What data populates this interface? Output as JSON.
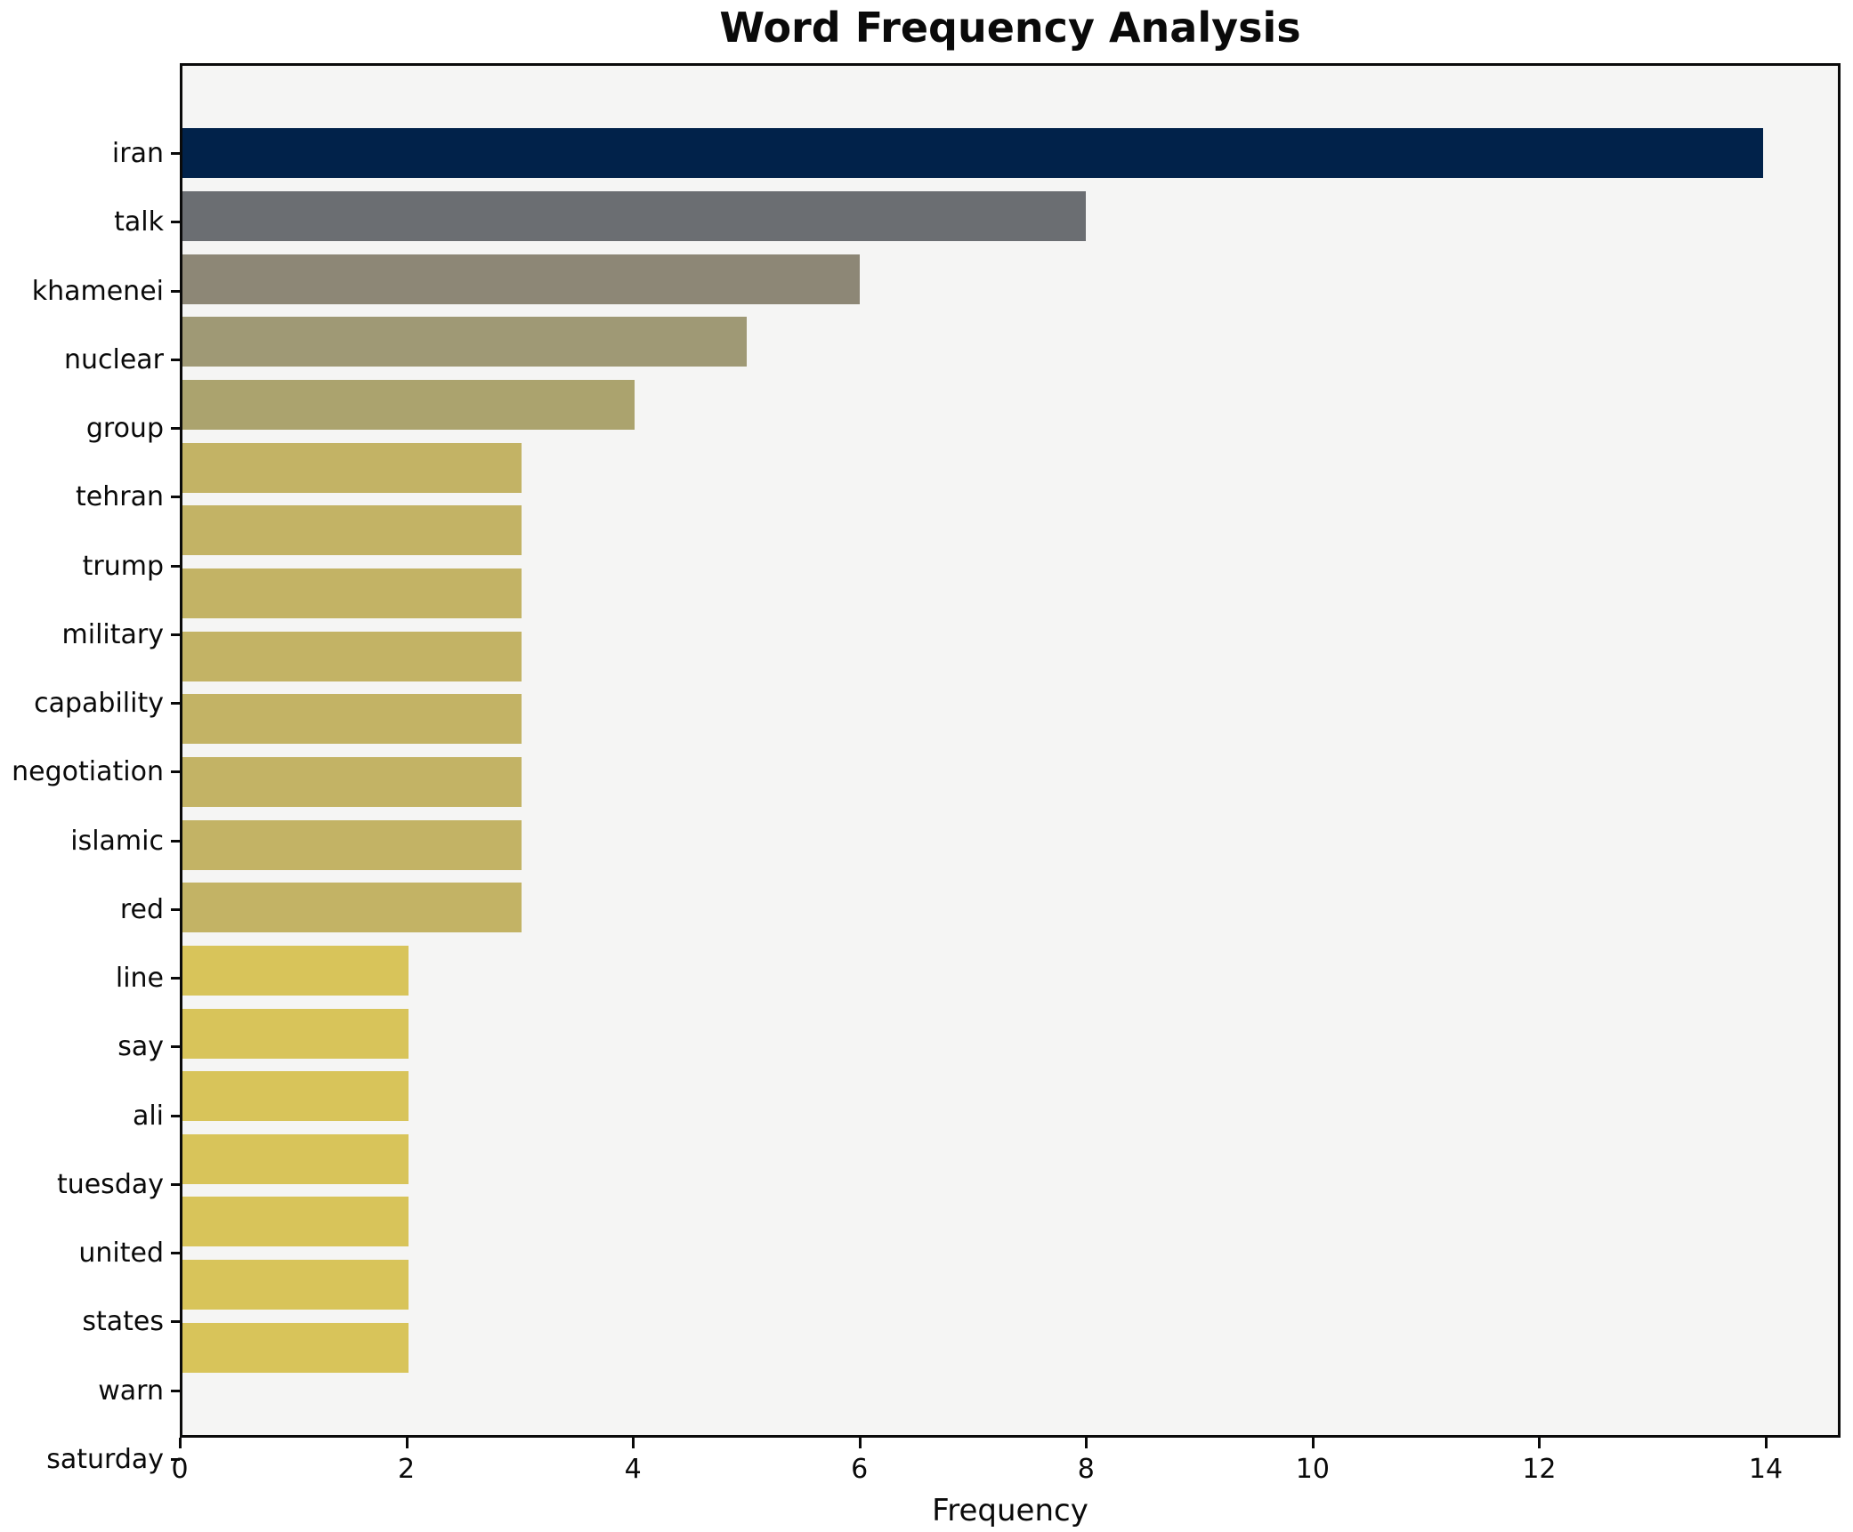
{
  "title": "Word Frequency Analysis",
  "xlabel": "Frequency",
  "chart_data": {
    "type": "bar",
    "orientation": "horizontal",
    "title": "Word Frequency Analysis",
    "xlabel": "Frequency",
    "ylabel": "",
    "xlim": [
      0,
      14.66
    ],
    "xticks": [
      0,
      2,
      4,
      6,
      8,
      10,
      12,
      14
    ],
    "grid": false,
    "legend": "none",
    "plot_background": "#f5f5f4",
    "figure_background": "#ffffff",
    "axis_color": "#0a0a0a",
    "categories": [
      "iran",
      "talk",
      "khamenei",
      "nuclear",
      "group",
      "tehran",
      "trump",
      "military",
      "capability",
      "negotiation",
      "islamic",
      "red",
      "line",
      "say",
      "ali",
      "tuesday",
      "united",
      "states",
      "warn",
      "saturday"
    ],
    "values": [
      14,
      8,
      6,
      5,
      4,
      3,
      3,
      3,
      3,
      3,
      3,
      3,
      3,
      2,
      2,
      2,
      2,
      2,
      2,
      2
    ],
    "bar_colors": [
      "#01224a",
      "#6b6e72",
      "#8d8776",
      "#9f9975",
      "#aba36e",
      "#c3b365",
      "#c3b365",
      "#c3b365",
      "#c3b365",
      "#c3b365",
      "#c3b365",
      "#c3b365",
      "#c3b365",
      "#d8c45a",
      "#d8c45a",
      "#d8c45a",
      "#d8c45a",
      "#d8c45a",
      "#d8c45a",
      "#d8c45a"
    ]
  }
}
